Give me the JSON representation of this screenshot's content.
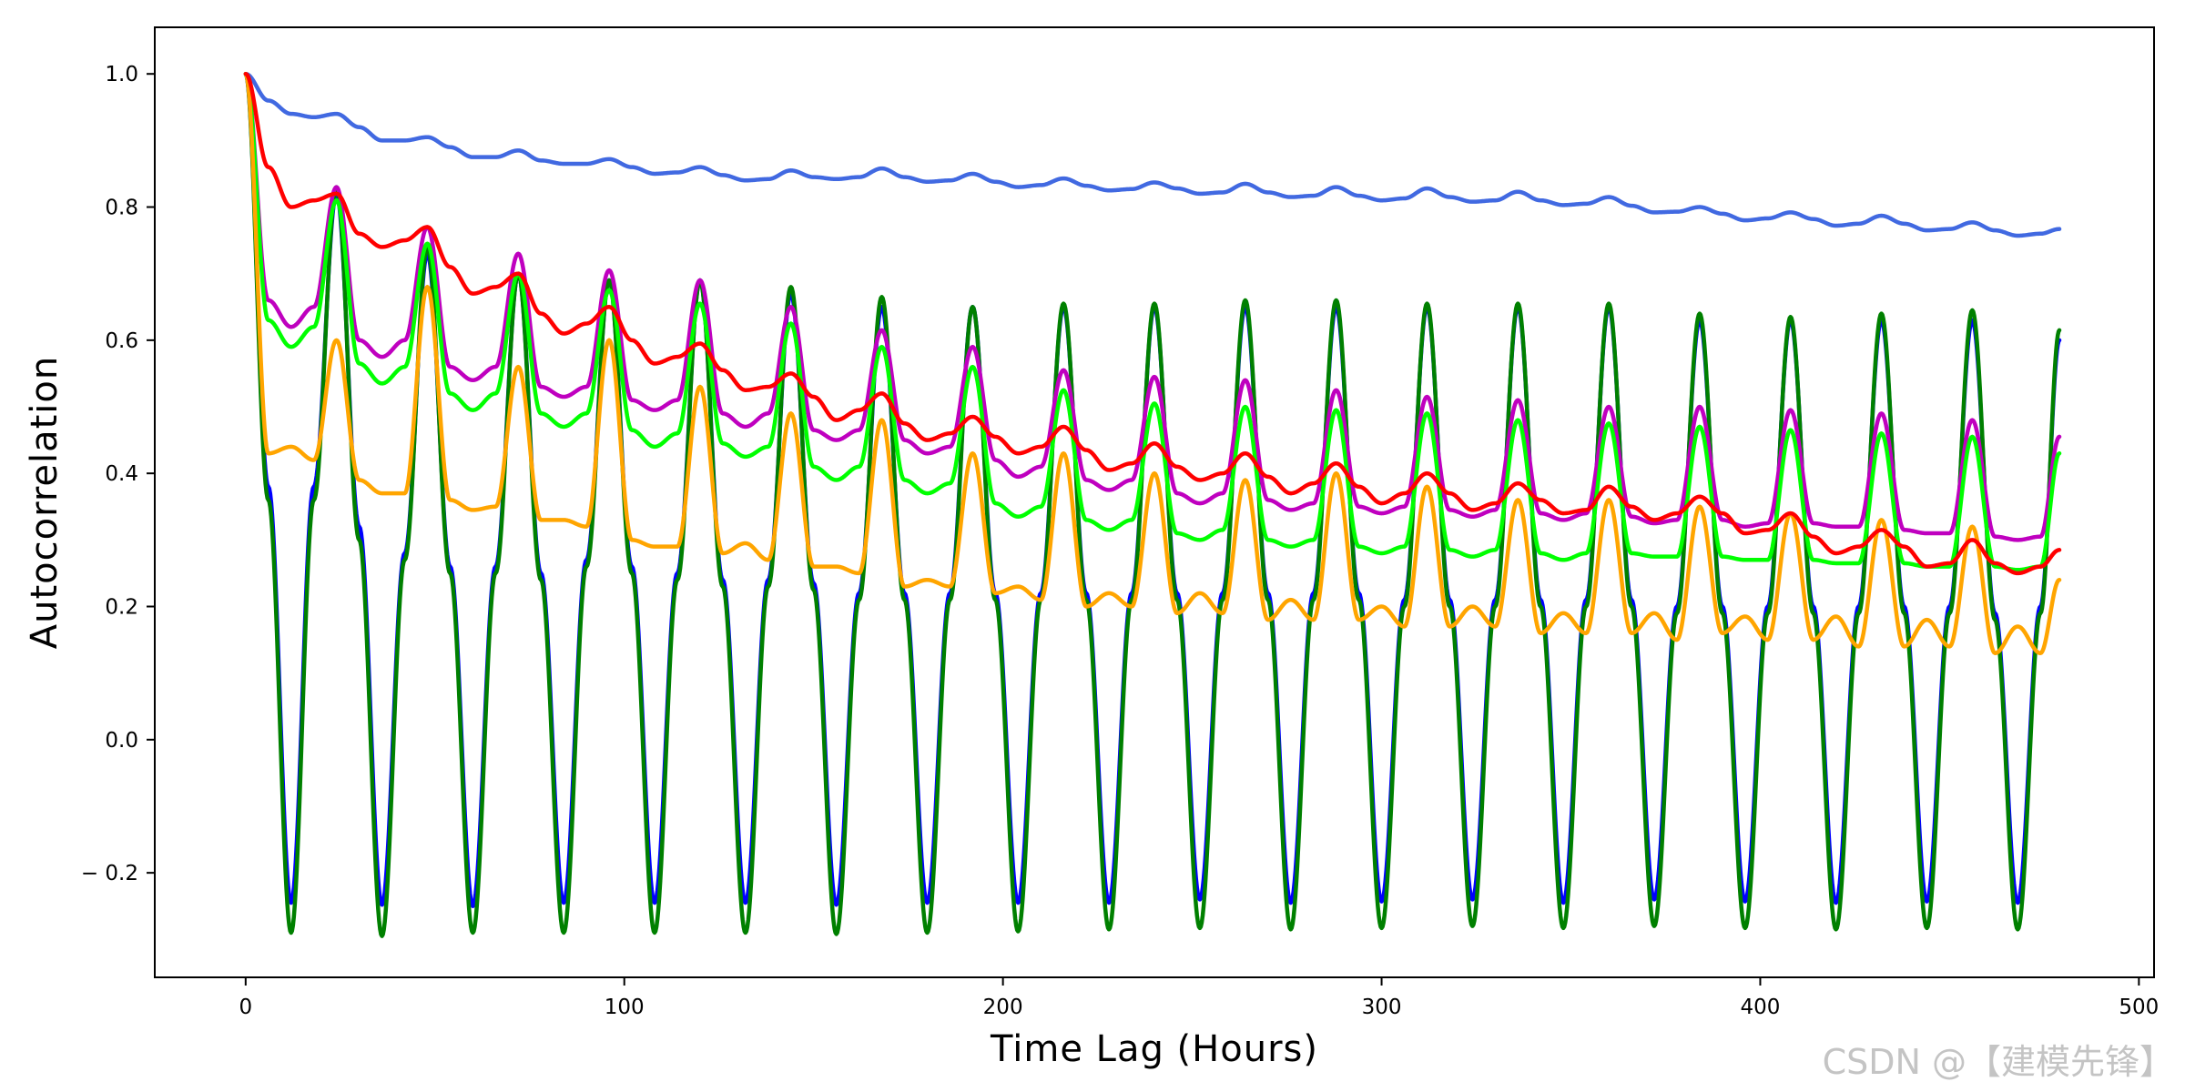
{
  "chart_data": {
    "type": "line",
    "title": "",
    "xlabel": "Time Lag (Hours)",
    "ylabel": "Autocorrelation",
    "xlim": [
      -24,
      504
    ],
    "ylim": [
      -0.357,
      1.07
    ],
    "xticks": [
      0,
      100,
      200,
      300,
      400,
      500
    ],
    "xtick_labels": [
      "0",
      "100",
      "200",
      "300",
      "400",
      "500"
    ],
    "yticks": [
      -0.2,
      0.0,
      0.2,
      0.4,
      0.6,
      0.8,
      1.0
    ],
    "ytick_labels": [
      "− 0.2",
      "0.0",
      "0.2",
      "0.4",
      "0.6",
      "0.8",
      "1.0"
    ],
    "grid": false,
    "legend": "none",
    "period_hours": 24,
    "x": [
      0,
      6,
      12,
      18,
      24,
      30,
      36,
      42,
      48,
      54,
      60,
      66,
      72,
      78,
      84,
      90,
      96,
      102,
      108,
      114,
      120,
      126,
      132,
      138,
      144,
      150,
      156,
      162,
      168,
      174,
      180,
      186,
      192,
      198,
      204,
      210,
      216,
      222,
      228,
      234,
      240,
      246,
      252,
      258,
      264,
      270,
      276,
      282,
      288,
      294,
      300,
      306,
      312,
      318,
      324,
      330,
      336,
      342,
      348,
      354,
      360,
      366,
      372,
      378,
      384,
      390,
      396,
      402,
      408,
      414,
      420,
      426,
      432,
      438,
      444,
      450,
      456,
      462,
      468,
      474,
      479
    ],
    "series": [
      {
        "color": "#4169e1",
        "values": [
          1.0,
          0.96,
          0.94,
          0.935,
          0.94,
          0.92,
          0.9,
          0.9,
          0.905,
          0.89,
          0.875,
          0.875,
          0.885,
          0.87,
          0.865,
          0.865,
          0.872,
          0.86,
          0.85,
          0.852,
          0.86,
          0.848,
          0.84,
          0.842,
          0.855,
          0.845,
          0.842,
          0.845,
          0.858,
          0.845,
          0.838,
          0.84,
          0.85,
          0.838,
          0.83,
          0.833,
          0.843,
          0.832,
          0.825,
          0.827,
          0.837,
          0.828,
          0.82,
          0.822,
          0.835,
          0.822,
          0.815,
          0.817,
          0.83,
          0.817,
          0.81,
          0.813,
          0.828,
          0.815,
          0.808,
          0.81,
          0.823,
          0.81,
          0.803,
          0.805,
          0.815,
          0.802,
          0.792,
          0.793,
          0.8,
          0.79,
          0.78,
          0.783,
          0.792,
          0.782,
          0.772,
          0.775,
          0.787,
          0.775,
          0.765,
          0.767,
          0.777,
          0.765,
          0.757,
          0.76,
          0.767
        ]
      },
      {
        "color": "#0000ff",
        "values": [
          1.0,
          0.38,
          -0.245,
          0.38,
          0.82,
          0.32,
          -0.248,
          0.28,
          0.73,
          0.26,
          -0.25,
          0.26,
          0.7,
          0.25,
          -0.245,
          0.27,
          0.69,
          0.26,
          -0.245,
          0.25,
          0.69,
          0.24,
          -0.245,
          0.24,
          0.67,
          0.235,
          -0.248,
          0.22,
          0.65,
          0.22,
          -0.245,
          0.22,
          0.65,
          0.22,
          -0.245,
          0.22,
          0.65,
          0.22,
          -0.245,
          0.22,
          0.65,
          0.22,
          -0.24,
          0.22,
          0.65,
          0.22,
          -0.245,
          0.22,
          0.65,
          0.22,
          -0.243,
          0.21,
          0.65,
          0.21,
          -0.24,
          0.21,
          0.65,
          0.21,
          -0.245,
          0.21,
          0.65,
          0.21,
          -0.24,
          0.2,
          0.63,
          0.2,
          -0.243,
          0.2,
          0.63,
          0.2,
          -0.245,
          0.2,
          0.63,
          0.2,
          -0.243,
          0.2,
          0.63,
          0.19,
          -0.245,
          0.2,
          0.6
        ]
      },
      {
        "color": "#008000",
        "values": [
          1.0,
          0.36,
          -0.29,
          0.36,
          0.83,
          0.3,
          -0.295,
          0.27,
          0.74,
          0.25,
          -0.29,
          0.25,
          0.7,
          0.24,
          -0.29,
          0.26,
          0.69,
          0.25,
          -0.29,
          0.24,
          0.69,
          0.23,
          -0.29,
          0.23,
          0.68,
          0.225,
          -0.292,
          0.21,
          0.665,
          0.21,
          -0.29,
          0.21,
          0.65,
          0.21,
          -0.288,
          0.21,
          0.655,
          0.21,
          -0.285,
          0.21,
          0.655,
          0.21,
          -0.283,
          0.21,
          0.66,
          0.21,
          -0.285,
          0.21,
          0.66,
          0.21,
          -0.283,
          0.2,
          0.655,
          0.2,
          -0.28,
          0.2,
          0.655,
          0.2,
          -0.283,
          0.2,
          0.655,
          0.2,
          -0.28,
          0.19,
          0.64,
          0.19,
          -0.283,
          0.19,
          0.635,
          0.19,
          -0.285,
          0.19,
          0.64,
          0.19,
          -0.283,
          0.19,
          0.645,
          0.18,
          -0.285,
          0.19,
          0.615
        ]
      },
      {
        "color": "#bf00bf",
        "values": [
          1.0,
          0.66,
          0.62,
          0.65,
          0.83,
          0.6,
          0.575,
          0.6,
          0.77,
          0.56,
          0.54,
          0.56,
          0.73,
          0.53,
          0.515,
          0.53,
          0.705,
          0.51,
          0.495,
          0.51,
          0.69,
          0.49,
          0.47,
          0.49,
          0.65,
          0.465,
          0.45,
          0.465,
          0.615,
          0.45,
          0.43,
          0.44,
          0.59,
          0.42,
          0.395,
          0.41,
          0.555,
          0.39,
          0.375,
          0.39,
          0.545,
          0.37,
          0.355,
          0.37,
          0.54,
          0.36,
          0.345,
          0.355,
          0.525,
          0.35,
          0.34,
          0.35,
          0.515,
          0.345,
          0.335,
          0.345,
          0.51,
          0.34,
          0.33,
          0.34,
          0.5,
          0.335,
          0.325,
          0.33,
          0.5,
          0.33,
          0.32,
          0.325,
          0.495,
          0.325,
          0.32,
          0.32,
          0.49,
          0.315,
          0.31,
          0.31,
          0.48,
          0.305,
          0.3,
          0.305,
          0.455
        ]
      },
      {
        "color": "#00ff00",
        "values": [
          1.0,
          0.63,
          0.59,
          0.62,
          0.81,
          0.565,
          0.535,
          0.56,
          0.745,
          0.52,
          0.495,
          0.52,
          0.7,
          0.49,
          0.47,
          0.49,
          0.675,
          0.465,
          0.44,
          0.46,
          0.655,
          0.445,
          0.425,
          0.44,
          0.625,
          0.41,
          0.39,
          0.41,
          0.59,
          0.39,
          0.37,
          0.385,
          0.56,
          0.355,
          0.335,
          0.35,
          0.525,
          0.33,
          0.315,
          0.33,
          0.505,
          0.31,
          0.3,
          0.315,
          0.5,
          0.3,
          0.29,
          0.3,
          0.495,
          0.29,
          0.28,
          0.29,
          0.49,
          0.285,
          0.275,
          0.285,
          0.48,
          0.28,
          0.27,
          0.28,
          0.475,
          0.28,
          0.275,
          0.275,
          0.47,
          0.275,
          0.27,
          0.27,
          0.465,
          0.27,
          0.265,
          0.265,
          0.46,
          0.265,
          0.26,
          0.26,
          0.455,
          0.26,
          0.255,
          0.26,
          0.43
        ]
      },
      {
        "color": "#ffa500",
        "values": [
          1.0,
          0.43,
          0.44,
          0.42,
          0.6,
          0.39,
          0.37,
          0.37,
          0.68,
          0.36,
          0.345,
          0.35,
          0.56,
          0.33,
          0.33,
          0.32,
          0.6,
          0.3,
          0.29,
          0.29,
          0.53,
          0.28,
          0.295,
          0.27,
          0.49,
          0.26,
          0.26,
          0.25,
          0.48,
          0.23,
          0.24,
          0.23,
          0.43,
          0.22,
          0.23,
          0.21,
          0.43,
          0.2,
          0.22,
          0.2,
          0.4,
          0.19,
          0.22,
          0.19,
          0.39,
          0.18,
          0.21,
          0.18,
          0.4,
          0.18,
          0.2,
          0.17,
          0.38,
          0.17,
          0.2,
          0.17,
          0.36,
          0.16,
          0.19,
          0.16,
          0.36,
          0.16,
          0.19,
          0.15,
          0.35,
          0.16,
          0.185,
          0.15,
          0.34,
          0.15,
          0.185,
          0.14,
          0.33,
          0.14,
          0.18,
          0.14,
          0.32,
          0.13,
          0.17,
          0.13,
          0.24
        ]
      },
      {
        "color": "#ff0000",
        "values": [
          1.0,
          0.86,
          0.8,
          0.81,
          0.82,
          0.76,
          0.74,
          0.75,
          0.77,
          0.71,
          0.67,
          0.68,
          0.7,
          0.64,
          0.61,
          0.625,
          0.65,
          0.6,
          0.565,
          0.575,
          0.595,
          0.555,
          0.525,
          0.53,
          0.55,
          0.515,
          0.48,
          0.495,
          0.52,
          0.475,
          0.45,
          0.46,
          0.485,
          0.455,
          0.43,
          0.44,
          0.47,
          0.435,
          0.405,
          0.415,
          0.445,
          0.41,
          0.39,
          0.4,
          0.43,
          0.395,
          0.37,
          0.385,
          0.415,
          0.38,
          0.355,
          0.37,
          0.4,
          0.37,
          0.345,
          0.355,
          0.385,
          0.36,
          0.34,
          0.345,
          0.38,
          0.35,
          0.33,
          0.34,
          0.365,
          0.34,
          0.31,
          0.315,
          0.34,
          0.305,
          0.28,
          0.29,
          0.315,
          0.29,
          0.26,
          0.265,
          0.3,
          0.265,
          0.25,
          0.26,
          0.285
        ]
      }
    ]
  },
  "watermark": "CSDN @【建模先锋】"
}
